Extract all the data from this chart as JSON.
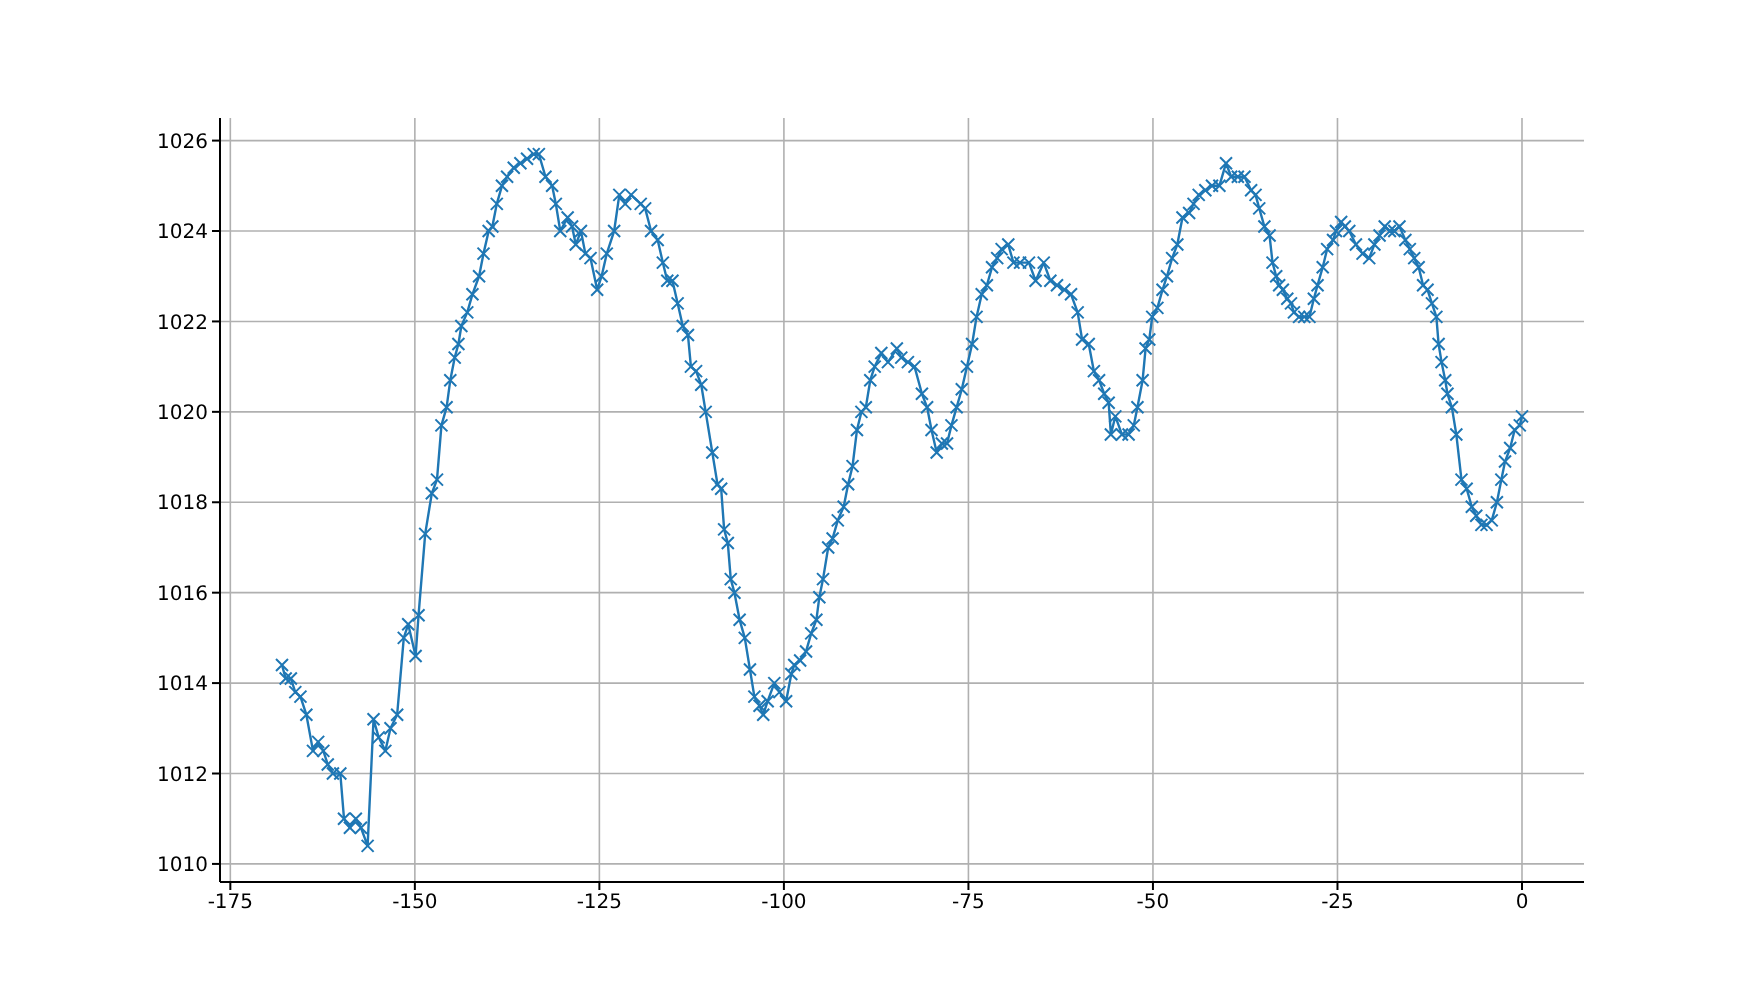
{
  "chart_data": {
    "type": "line",
    "x": [
      -168,
      -167.5,
      -166.8,
      -166.2,
      -165.5,
      -164.7,
      -163.8,
      -163.1,
      -162.4,
      -161.8,
      -161.1,
      -160.1,
      -159.6,
      -158.8,
      -158.0,
      -157.3,
      -156.4,
      -155.6,
      -154.9,
      -154.0,
      -153.3,
      -152.4,
      -151.5,
      -150.9,
      -149.9,
      -149.5,
      -148.6,
      -147.7,
      -147.0,
      -146.4,
      -145.7,
      -145.2,
      -144.6,
      -144.1,
      -143.7,
      -142.9,
      -142.2,
      -141.3,
      -140.7,
      -140.0,
      -139.5,
      -138.9,
      -138.2,
      -137.5,
      -136.6,
      -135.7,
      -134.8,
      -133.9,
      -133.2,
      -132.3,
      -131.4,
      -130.9,
      -130.3,
      -129.3,
      -128.7,
      -128.2,
      -127.5,
      -126.9,
      -126.2,
      -125.3,
      -124.7,
      -124.0,
      -123.0,
      -122.3,
      -121.5,
      -120.7,
      -119.4,
      -118.8,
      -118.0,
      -117.1,
      -116.4,
      -115.8,
      -115.1,
      -114.4,
      -113.7,
      -113.0,
      -112.6,
      -111.9,
      -111.2,
      -110.6,
      -109.7,
      -109.0,
      -108.5,
      -108.1,
      -107.6,
      -107.2,
      -106.7,
      -106.0,
      -105.3,
      -104.6,
      -104.0,
      -103.3,
      -102.8,
      -102.2,
      -101.3,
      -100.6,
      -99.7,
      -99.0,
      -98.6,
      -97.8,
      -97.0,
      -96.3,
      -95.6,
      -95.2,
      -94.7,
      -94.0,
      -93.4,
      -92.7,
      -91.9,
      -91.3,
      -90.7,
      -90.1,
      -89.5,
      -88.9,
      -88.3,
      -87.7,
      -86.8,
      -85.9,
      -84.7,
      -84.1,
      -83.2,
      -82.3,
      -81.3,
      -80.6,
      -80.0,
      -79.3,
      -78.6,
      -77.9,
      -77.3,
      -76.6,
      -75.9,
      -75.2,
      -74.5,
      -73.9,
      -73.2,
      -72.5,
      -71.8,
      -71.1,
      -70.5,
      -69.6,
      -68.9,
      -68.0,
      -66.8,
      -65.9,
      -64.8,
      -63.9,
      -63.0,
      -62.0,
      -61.1,
      -60.2,
      -59.6,
      -58.7,
      -58.0,
      -57.3,
      -56.6,
      -56.0,
      -55.7,
      -55.1,
      -54.2,
      -53.3,
      -52.6,
      -52.1,
      -51.4,
      -51.0,
      -50.5,
      -50.1,
      -49.4,
      -48.7,
      -48.1,
      -47.4,
      -46.7,
      -46.0,
      -45.1,
      -44.5,
      -43.8,
      -42.9,
      -42.0,
      -41.0,
      -40.1,
      -39.4,
      -38.5,
      -37.6,
      -36.7,
      -36.1,
      -35.6,
      -34.9,
      -34.2,
      -33.8,
      -33.3,
      -32.9,
      -32.4,
      -31.8,
      -31.3,
      -30.9,
      -30.2,
      -29.5,
      -28.8,
      -28.2,
      -27.7,
      -27.0,
      -26.4,
      -25.6,
      -25.2,
      -24.5,
      -24.0,
      -23.4,
      -22.5,
      -21.6,
      -20.7,
      -20.0,
      -19.3,
      -18.6,
      -17.9,
      -17.3,
      -16.6,
      -15.8,
      -15.2,
      -14.6,
      -14.0,
      -13.4,
      -12.8,
      -12.2,
      -11.6,
      -11.3,
      -10.9,
      -10.4,
      -10.1,
      -9.5,
      -8.9,
      -8.2,
      -7.5,
      -6.8,
      -6.2,
      -5.5,
      -4.8,
      -4.1,
      -3.4,
      -2.8,
      -2.3,
      -1.6,
      -1.0,
      -0.3,
      0
    ],
    "series": [
      {
        "color": "#1f77b4",
        "values": [
          1014.4,
          1014.1,
          1014.1,
          1013.8,
          1013.7,
          1013.3,
          1012.5,
          1012.7,
          1012.5,
          1012.2,
          1012.0,
          1012.0,
          1011.0,
          1010.8,
          1011.0,
          1010.8,
          1010.4,
          1013.2,
          1012.8,
          1012.5,
          1013.0,
          1013.3,
          1015.0,
          1015.3,
          1014.6,
          1015.5,
          1017.3,
          1018.2,
          1018.5,
          1019.7,
          1020.1,
          1020.7,
          1021.2,
          1021.5,
          1021.9,
          1022.2,
          1022.6,
          1023.0,
          1023.5,
          1024.0,
          1024.1,
          1024.6,
          1025.0,
          1025.2,
          1025.4,
          1025.5,
          1025.6,
          1025.7,
          1025.7,
          1025.2,
          1025.0,
          1024.6,
          1024.0,
          1024.3,
          1024.1,
          1023.7,
          1024.0,
          1023.5,
          1023.4,
          1022.7,
          1023.0,
          1023.5,
          1024.0,
          1024.8,
          1024.6,
          1024.8,
          1024.6,
          1024.5,
          1024.0,
          1023.8,
          1023.3,
          1022.9,
          1022.9,
          1022.4,
          1021.9,
          1021.7,
          1021.0,
          1020.9,
          1020.6,
          1020.0,
          1019.1,
          1018.4,
          1018.3,
          1017.4,
          1017.1,
          1016.3,
          1016.0,
          1015.4,
          1015.0,
          1014.3,
          1013.7,
          1013.5,
          1013.3,
          1013.6,
          1014.0,
          1013.8,
          1013.6,
          1014.2,
          1014.4,
          1014.5,
          1014.7,
          1015.1,
          1015.4,
          1015.9,
          1016.3,
          1017.0,
          1017.2,
          1017.6,
          1017.9,
          1018.4,
          1018.8,
          1019.6,
          1020.0,
          1020.1,
          1020.7,
          1021.0,
          1021.3,
          1021.1,
          1021.4,
          1021.2,
          1021.1,
          1021.0,
          1020.4,
          1020.1,
          1019.6,
          1019.1,
          1019.3,
          1019.3,
          1019.7,
          1020.1,
          1020.5,
          1021.0,
          1021.5,
          1022.1,
          1022.6,
          1022.8,
          1023.2,
          1023.4,
          1023.6,
          1023.7,
          1023.3,
          1023.3,
          1023.3,
          1022.9,
          1023.3,
          1022.9,
          1022.8,
          1022.7,
          1022.6,
          1022.2,
          1021.6,
          1021.5,
          1020.9,
          1020.7,
          1020.4,
          1020.2,
          1019.5,
          1019.9,
          1019.5,
          1019.5,
          1019.7,
          1020.1,
          1020.7,
          1021.4,
          1021.6,
          1022.1,
          1022.3,
          1022.7,
          1023.0,
          1023.4,
          1023.7,
          1024.3,
          1024.4,
          1024.6,
          1024.8,
          1024.9,
          1025.0,
          1025.0,
          1025.5,
          1025.2,
          1025.2,
          1025.2,
          1024.9,
          1024.8,
          1024.5,
          1024.1,
          1023.9,
          1023.3,
          1023.0,
          1022.8,
          1022.7,
          1022.5,
          1022.4,
          1022.2,
          1022.1,
          1022.1,
          1022.1,
          1022.5,
          1022.8,
          1023.2,
          1023.6,
          1023.8,
          1024.0,
          1024.2,
          1024.1,
          1024.0,
          1023.7,
          1023.5,
          1023.4,
          1023.7,
          1023.9,
          1024.1,
          1024.0,
          1024.0,
          1024.1,
          1023.8,
          1023.6,
          1023.4,
          1023.2,
          1022.8,
          1022.7,
          1022.4,
          1022.1,
          1021.5,
          1021.1,
          1020.7,
          1020.4,
          1020.1,
          1019.5,
          1018.5,
          1018.3,
          1017.9,
          1017.7,
          1017.5,
          1017.5,
          1017.6,
          1018.0,
          1018.5,
          1018.9,
          1019.2,
          1019.6,
          1019.7,
          1019.9
        ]
      }
    ],
    "xlim": [
      -176.4,
      8.4
    ],
    "ylim": [
      1009.6,
      1026.5
    ],
    "xticks": [
      -175,
      -150,
      -125,
      -100,
      -75,
      -50,
      -25,
      0
    ],
    "yticks": [
      1010,
      1012,
      1014,
      1016,
      1018,
      1020,
      1022,
      1024,
      1026
    ],
    "grid": true,
    "marker": "cross",
    "line_style": "solid"
  }
}
